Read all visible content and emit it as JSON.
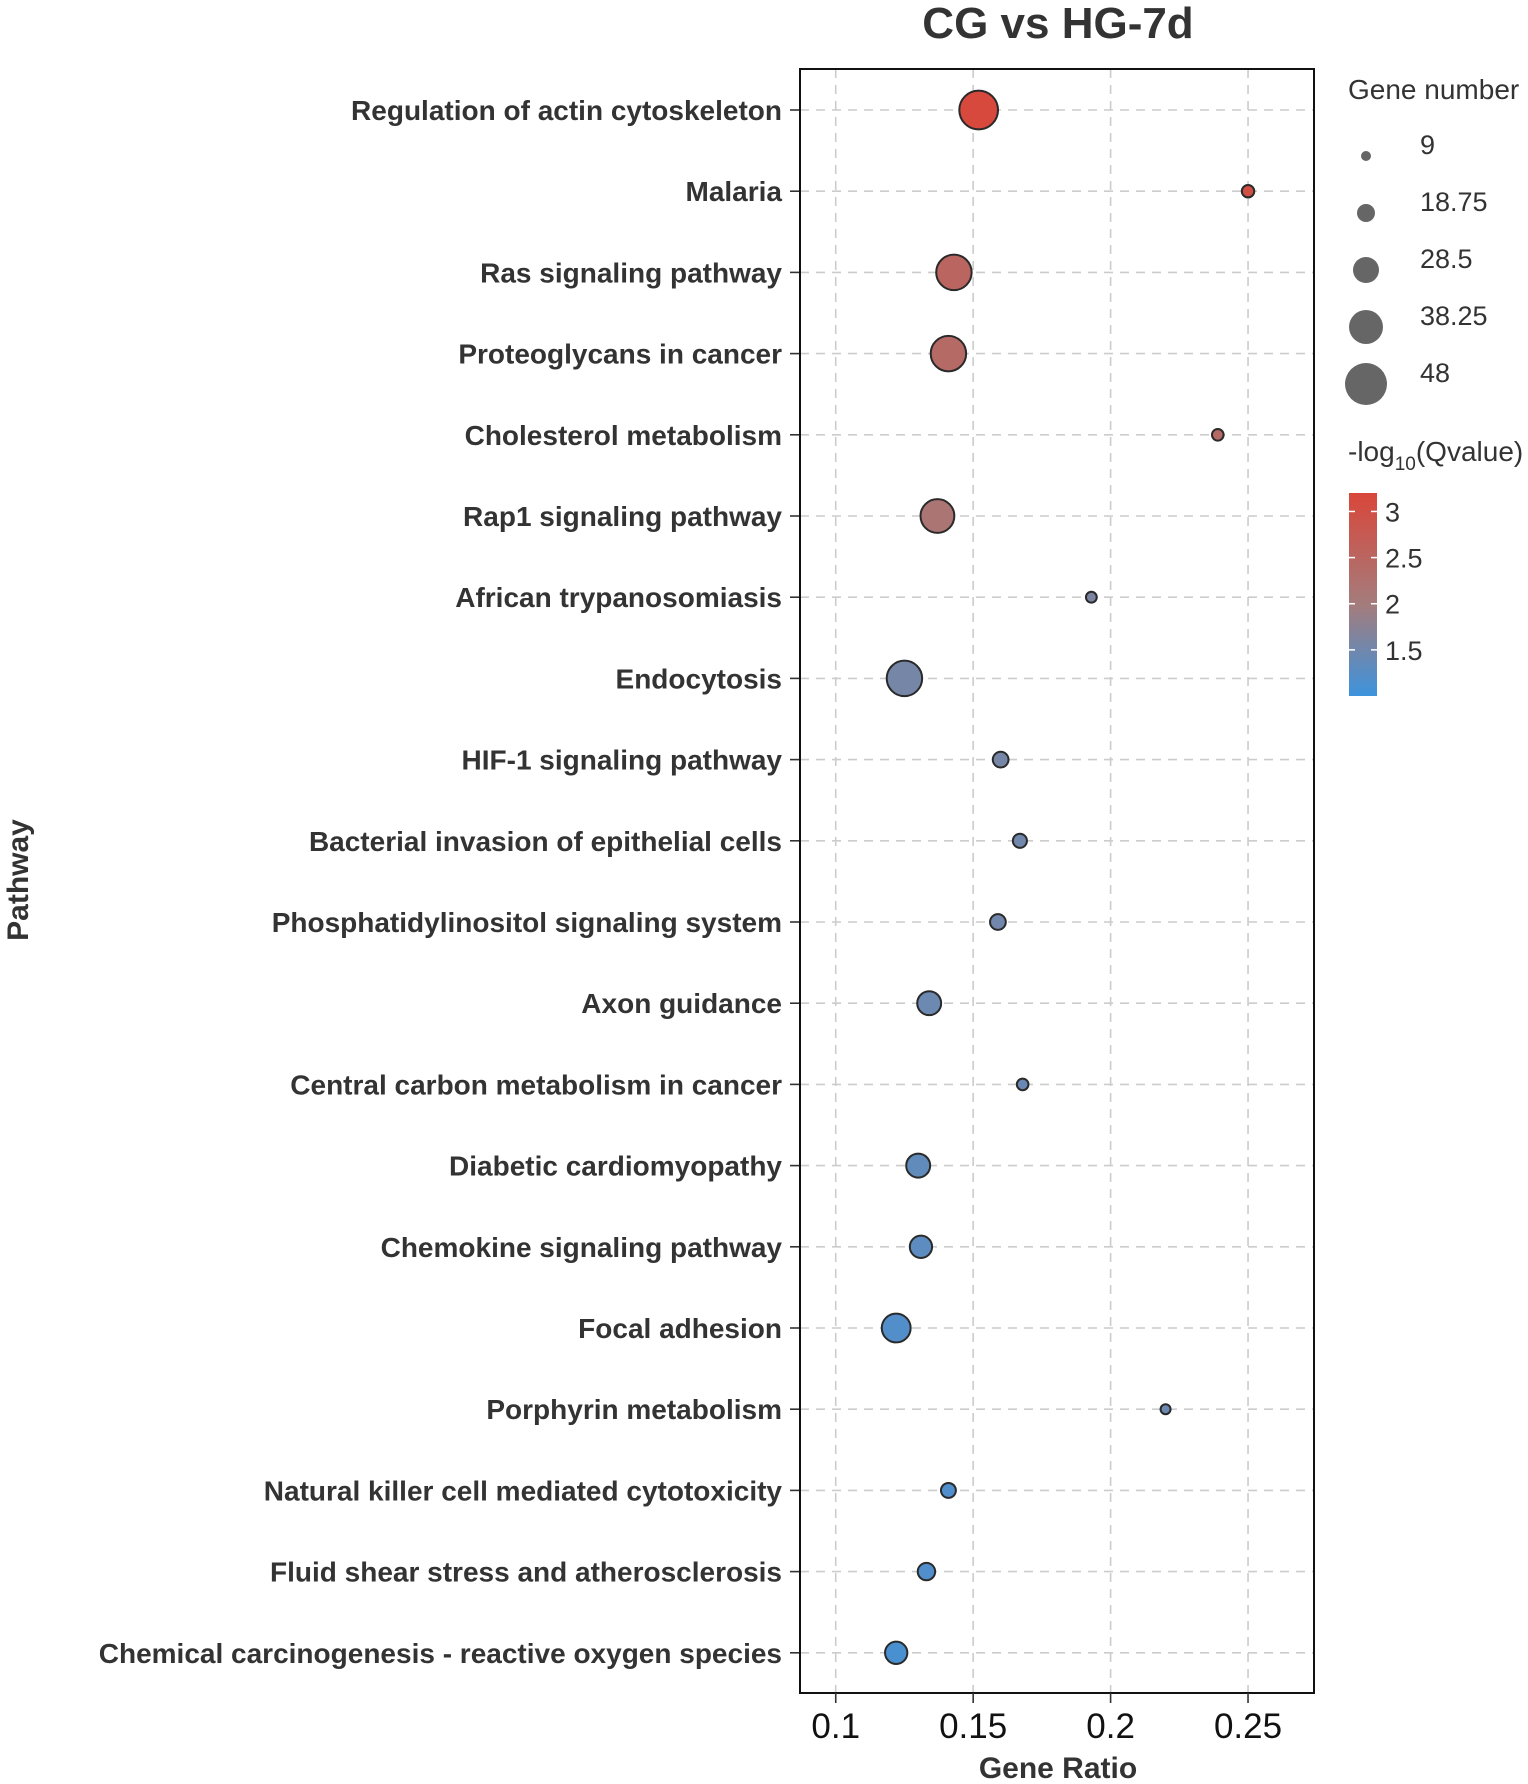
{
  "chart_data": {
    "type": "scatter",
    "title": "CG vs HG-7d",
    "xlabel": "Gene Ratio",
    "ylabel": "Pathway",
    "xlim": [
      0.087,
      0.274
    ],
    "xticks": [
      0.1,
      0.15,
      0.2,
      0.25
    ],
    "xtick_labels": [
      "0.1",
      "0.15",
      "0.2",
      "0.25"
    ],
    "grid": true,
    "points": [
      {
        "pathway": "Regulation of actin cytoskeleton",
        "gene_ratio": 0.152,
        "gene_number": 44,
        "neg_log10_q": 3.15
      },
      {
        "pathway": "Malaria",
        "gene_ratio": 0.25,
        "gene_number": 12,
        "neg_log10_q": 3.0
      },
      {
        "pathway": "Ras signaling pathway",
        "gene_ratio": 0.143,
        "gene_number": 40,
        "neg_log10_q": 2.5
      },
      {
        "pathway": "Proteoglycans in cancer",
        "gene_ratio": 0.141,
        "gene_number": 40,
        "neg_log10_q": 2.4
      },
      {
        "pathway": "Cholesterol metabolism",
        "gene_ratio": 0.239,
        "gene_number": 11,
        "neg_log10_q": 2.4
      },
      {
        "pathway": "Rap1 signaling pathway",
        "gene_ratio": 0.137,
        "gene_number": 38,
        "neg_log10_q": 2.15
      },
      {
        "pathway": "African trypanosomiasis",
        "gene_ratio": 0.193,
        "gene_number": 10,
        "neg_log10_q": 1.6
      },
      {
        "pathway": "Endocytosis",
        "gene_ratio": 0.125,
        "gene_number": 40,
        "neg_log10_q": 1.55
      },
      {
        "pathway": "HIF-1 signaling pathway",
        "gene_ratio": 0.16,
        "gene_number": 16,
        "neg_log10_q": 1.55
      },
      {
        "pathway": "Bacterial invasion of epithelial cells",
        "gene_ratio": 0.167,
        "gene_number": 14,
        "neg_log10_q": 1.5
      },
      {
        "pathway": "Phosphatidylinositol signaling system",
        "gene_ratio": 0.159,
        "gene_number": 16,
        "neg_log10_q": 1.5
      },
      {
        "pathway": "Axon guidance",
        "gene_ratio": 0.134,
        "gene_number": 26,
        "neg_log10_q": 1.45
      },
      {
        "pathway": "Central carbon metabolism in cancer",
        "gene_ratio": 0.168,
        "gene_number": 11,
        "neg_log10_q": 1.42
      },
      {
        "pathway": "Diabetic cardiomyopathy",
        "gene_ratio": 0.13,
        "gene_number": 26,
        "neg_log10_q": 1.35
      },
      {
        "pathway": "Chemokine signaling pathway",
        "gene_ratio": 0.131,
        "gene_number": 24,
        "neg_log10_q": 1.3
      },
      {
        "pathway": "Focal adhesion",
        "gene_ratio": 0.122,
        "gene_number": 32,
        "neg_log10_q": 1.2
      },
      {
        "pathway": "Porphyrin metabolism",
        "gene_ratio": 0.22,
        "gene_number": 9,
        "neg_log10_q": 1.45
      },
      {
        "pathway": "Natural killer cell mediated cytotoxicity",
        "gene_ratio": 0.141,
        "gene_number": 15,
        "neg_log10_q": 1.18
      },
      {
        "pathway": "Fluid shear stress and atherosclerosis",
        "gene_ratio": 0.133,
        "gene_number": 18,
        "neg_log10_q": 1.18
      },
      {
        "pathway": "Chemical carcinogenesis - reactive oxygen species",
        "gene_ratio": 0.122,
        "gene_number": 24,
        "neg_log10_q": 1.12
      }
    ],
    "size_legend": {
      "title": "Gene number",
      "values": [
        9,
        18.75,
        28.5,
        38.25,
        48
      ],
      "labels": [
        "9",
        "18.75",
        "28.5",
        "38.25",
        "48"
      ]
    },
    "color_legend": {
      "title_prefix": "-log",
      "title_subscript": "10",
      "title_suffix": "(Qvalue)",
      "min": 1.0,
      "max": 3.2,
      "ticks": [
        3,
        2.5,
        2,
        1.5
      ],
      "tick_labels": [
        "3",
        "2.5",
        "2",
        "1.5"
      ],
      "low_color": "#3d93dd",
      "mid_color": "#a47c7c",
      "high_color": "#d9463a"
    }
  }
}
